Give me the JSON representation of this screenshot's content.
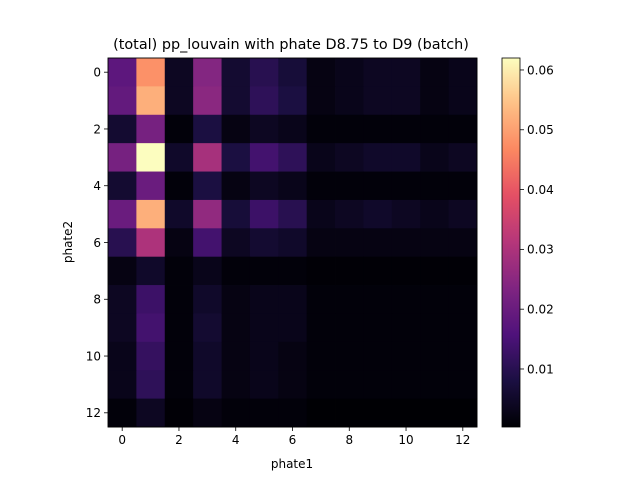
{
  "chart_data": {
    "type": "heatmap",
    "title": "(total) pp_louvain with phate D8.75 to D9 (batch)",
    "xlabel": "phate1",
    "ylabel": "phate2",
    "x_ticks": [
      0,
      2,
      4,
      6,
      8,
      10,
      12
    ],
    "y_ticks": [
      0,
      2,
      4,
      6,
      8,
      10,
      12
    ],
    "colormap": "magma",
    "vmin": 0.0003,
    "vmax": 0.062,
    "colorbar_ticks": [
      0.01,
      0.02,
      0.03,
      0.04,
      0.05,
      0.06
    ],
    "x_size": 13,
    "y_size": 13,
    "values": [
      [
        0.018,
        0.048,
        0.004,
        0.024,
        0.006,
        0.01,
        0.007,
        0.002,
        0.003,
        0.004,
        0.004,
        0.002,
        0.003
      ],
      [
        0.019,
        0.052,
        0.004,
        0.025,
        0.006,
        0.011,
        0.008,
        0.002,
        0.003,
        0.004,
        0.004,
        0.002,
        0.003
      ],
      [
        0.006,
        0.022,
        0.001,
        0.008,
        0.002,
        0.004,
        0.003,
        0.001,
        0.001,
        0.001,
        0.001,
        0.001,
        0.001
      ],
      [
        0.022,
        0.062,
        0.005,
        0.029,
        0.008,
        0.014,
        0.011,
        0.003,
        0.004,
        0.005,
        0.005,
        0.003,
        0.004
      ],
      [
        0.006,
        0.02,
        0.001,
        0.008,
        0.002,
        0.004,
        0.003,
        0.001,
        0.001,
        0.001,
        0.001,
        0.001,
        0.001
      ],
      [
        0.02,
        0.052,
        0.005,
        0.026,
        0.007,
        0.013,
        0.01,
        0.003,
        0.004,
        0.005,
        0.004,
        0.003,
        0.004
      ],
      [
        0.01,
        0.03,
        0.002,
        0.014,
        0.004,
        0.006,
        0.005,
        0.002,
        0.002,
        0.002,
        0.002,
        0.002,
        0.002
      ],
      [
        0.002,
        0.005,
        0.001,
        0.003,
        0.001,
        0.001,
        0.001,
        0.0005,
        0.0005,
        0.0005,
        0.0005,
        0.0005,
        0.0005
      ],
      [
        0.004,
        0.013,
        0.001,
        0.005,
        0.002,
        0.003,
        0.003,
        0.001,
        0.001,
        0.001,
        0.001,
        0.001,
        0.001
      ],
      [
        0.004,
        0.014,
        0.001,
        0.006,
        0.002,
        0.003,
        0.003,
        0.001,
        0.001,
        0.001,
        0.001,
        0.001,
        0.001
      ],
      [
        0.003,
        0.012,
        0.001,
        0.005,
        0.002,
        0.003,
        0.002,
        0.001,
        0.001,
        0.001,
        0.001,
        0.001,
        0.001
      ],
      [
        0.003,
        0.011,
        0.001,
        0.005,
        0.002,
        0.003,
        0.002,
        0.001,
        0.001,
        0.001,
        0.001,
        0.001,
        0.001
      ],
      [
        0.001,
        0.004,
        0.0005,
        0.002,
        0.001,
        0.001,
        0.001,
        0.0003,
        0.0003,
        0.0003,
        0.0003,
        0.0003,
        0.0003
      ]
    ]
  }
}
